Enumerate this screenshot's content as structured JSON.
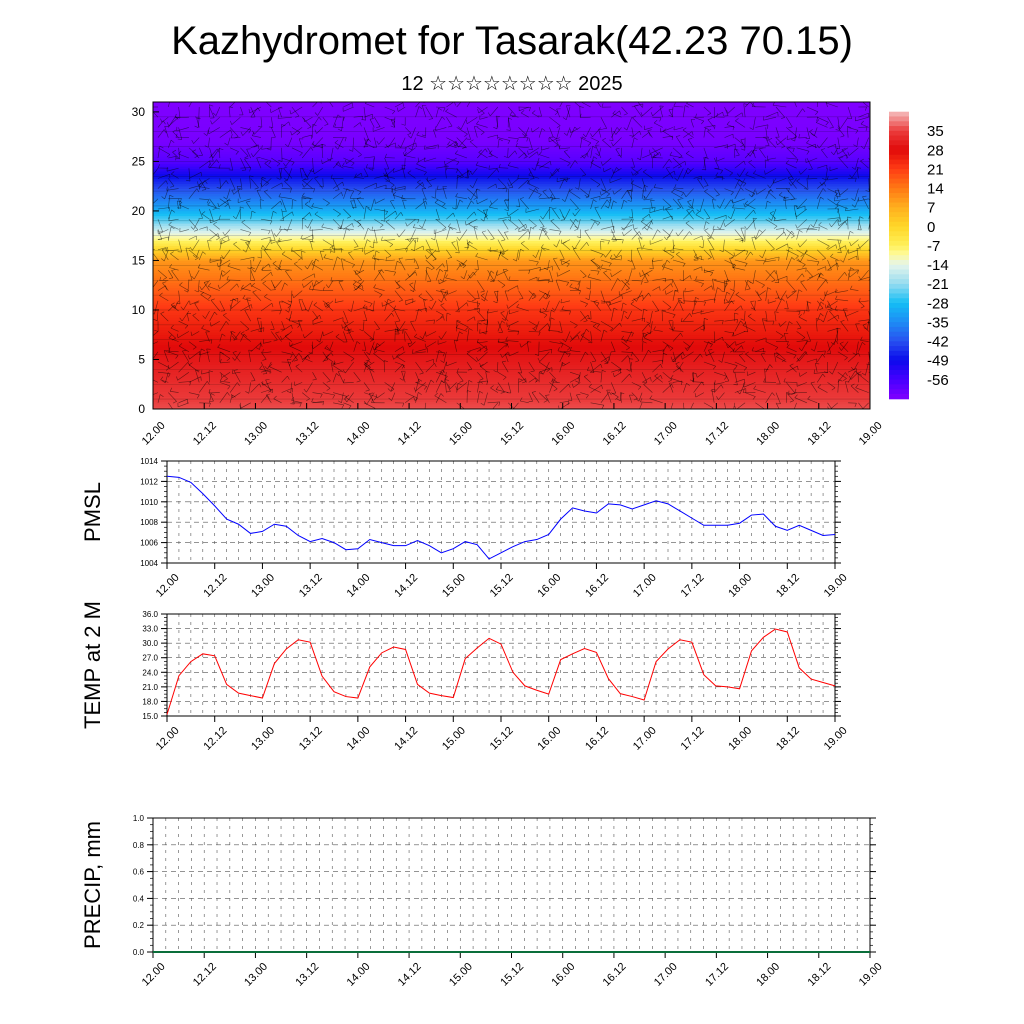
{
  "header": {
    "title": "Kazhydromet for Tasarak(42.23 70.15)",
    "subtitle": "12 ☆☆☆☆☆☆☆☆ 2025"
  },
  "chart_data": [
    {
      "type": "heatmap",
      "title": "",
      "ylim": [
        0,
        31
      ],
      "y_ticks": [
        "0",
        "5",
        "10",
        "15",
        "20",
        "25",
        "30"
      ],
      "x_ticks": [
        "12.00",
        "12.12",
        "13.00",
        "13.12",
        "14.00",
        "14.12",
        "15.00",
        "15.12",
        "16.00",
        "16.12",
        "17.00",
        "17.12",
        "18.00",
        "18.12",
        "19.00"
      ],
      "colorbar_labels": [
        "35",
        "28",
        "21",
        "14",
        "7",
        "0",
        "-7",
        "-14",
        "-21",
        "-28",
        "-35",
        "-42",
        "-49",
        "-56"
      ],
      "colorbar_range": [
        -63,
        42
      ],
      "overlay": "wind-barbs",
      "profile_levels": [
        0,
        5,
        10,
        15,
        17,
        19,
        21,
        23,
        25,
        27,
        31
      ],
      "profile_values": [
        36,
        30,
        22,
        10,
        -8,
        -24,
        -36,
        -46,
        -58,
        -62,
        -63
      ]
    },
    {
      "type": "line",
      "ylabel": "PMSL",
      "ylim": [
        1004,
        1014
      ],
      "y_ticks": [
        "1004",
        "1006",
        "1008",
        "1010",
        "1012",
        "1014"
      ],
      "x_ticks": [
        "12.00",
        "12.12",
        "13.00",
        "13.12",
        "14.00",
        "14.12",
        "15.00",
        "15.12",
        "16.00",
        "16.12",
        "17.00",
        "17.12",
        "18.00",
        "18.12",
        "19.00"
      ],
      "color": "#0000ff",
      "values": [
        1012.5,
        1012.4,
        1011.9,
        1010.8,
        1009.6,
        1008.3,
        1007.8,
        1006.9,
        1007.1,
        1007.8,
        1007.6,
        1006.7,
        1006.1,
        1006.4,
        1006.0,
        1005.3,
        1005.4,
        1006.3,
        1006.0,
        1005.7,
        1005.7,
        1006.2,
        1005.7,
        1005.0,
        1005.4,
        1006.1,
        1005.8,
        1004.4,
        1005.0,
        1005.6,
        1006.1,
        1006.3,
        1006.8,
        1008.3,
        1009.4,
        1009.1,
        1008.9,
        1009.8,
        1009.7,
        1009.3,
        1009.7,
        1010.1,
        1009.8,
        1009.1,
        1008.4,
        1007.7,
        1007.7,
        1007.7,
        1007.9,
        1008.7,
        1008.8,
        1007.6,
        1007.2,
        1007.7,
        1007.2,
        1006.7,
        1006.8
      ]
    },
    {
      "type": "line",
      "ylabel": "TEMP at 2 M",
      "ylim": [
        15,
        36
      ],
      "y_ticks": [
        "15.0",
        "18.0",
        "21.0",
        "24.0",
        "27.0",
        "30.0",
        "33.0",
        "36.0"
      ],
      "x_ticks": [
        "12.00",
        "12.12",
        "13.00",
        "13.12",
        "14.00",
        "14.12",
        "15.00",
        "15.12",
        "16.00",
        "16.12",
        "17.00",
        "17.12",
        "18.00",
        "18.12",
        "19.00"
      ],
      "color": "#ff0000",
      "values": [
        15.3,
        23.3,
        26.2,
        27.8,
        27.4,
        21.5,
        19.7,
        19.2,
        18.7,
        25.8,
        28.8,
        30.7,
        30.2,
        23.2,
        20.0,
        19.0,
        18.7,
        25.1,
        28.0,
        29.2,
        28.7,
        21.5,
        19.7,
        19.2,
        18.8,
        26.8,
        29.0,
        31.0,
        29.8,
        24.0,
        21.2,
        20.3,
        19.5,
        26.6,
        27.8,
        28.9,
        28.1,
        22.7,
        19.6,
        19.0,
        18.3,
        26.2,
        28.8,
        30.7,
        30.2,
        23.5,
        21.2,
        21.0,
        20.6,
        28.4,
        31.2,
        32.9,
        32.3,
        24.9,
        22.6,
        21.9,
        21.2
      ]
    },
    {
      "type": "bar",
      "ylabel": "PRECIP, mm",
      "ylim": [
        0,
        1
      ],
      "y_ticks": [
        "0.0",
        "0.2",
        "0.4",
        "0.6",
        "0.8",
        "1.0"
      ],
      "x_ticks": [
        "12.00",
        "12.12",
        "13.00",
        "13.12",
        "14.00",
        "14.12",
        "15.00",
        "15.12",
        "16.00",
        "16.12",
        "17.00",
        "17.12",
        "18.00",
        "18.12",
        "19.00"
      ],
      "values": []
    }
  ]
}
